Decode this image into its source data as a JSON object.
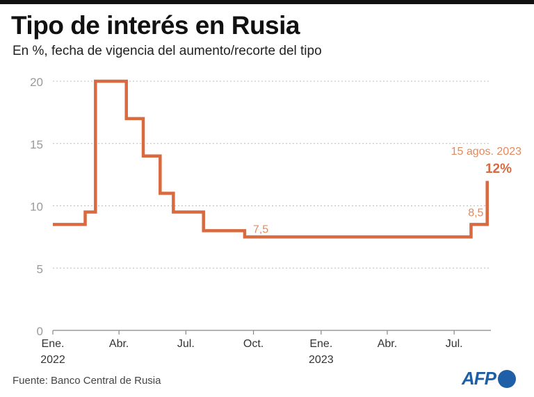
{
  "header": {
    "title": "Tipo de interés en Rusia",
    "subtitle": "En %, fecha de vigencia del aumento/recorte del tipo"
  },
  "source": "Fuente: Banco Central de Rusia",
  "logo": {
    "text": "AFP"
  },
  "colors": {
    "line": "#d9693f",
    "label": "#e08a5e",
    "grid": "#bbbbbb",
    "axis": "#888888",
    "logo": "#1f5fa8"
  },
  "chart_data": {
    "type": "line",
    "step": true,
    "title": "Tipo de interés en Rusia",
    "subtitle": "En %, fecha de vigencia del aumento/recorte del tipo",
    "ylim": [
      0,
      20
    ],
    "yticks": [
      0,
      5,
      10,
      15,
      20
    ],
    "xlim": [
      "2022-01-01",
      "2023-08-20"
    ],
    "xticks": [
      {
        "date": "2022-01-01",
        "label": "Ene.",
        "label2": "2022"
      },
      {
        "date": "2022-04-01",
        "label": "Abr.",
        "label2": ""
      },
      {
        "date": "2022-07-01",
        "label": "Jul.",
        "label2": ""
      },
      {
        "date": "2022-10-01",
        "label": "Oct.",
        "label2": ""
      },
      {
        "date": "2023-01-01",
        "label": "Ene.",
        "label2": "2023"
      },
      {
        "date": "2023-04-01",
        "label": "Abr.",
        "label2": ""
      },
      {
        "date": "2023-07-01",
        "label": "Jul.",
        "label2": ""
      }
    ],
    "grid": true,
    "series": [
      {
        "points": [
          {
            "x": "2022-01-01",
            "y": 8.5
          },
          {
            "x": "2022-02-14",
            "y": 9.5
          },
          {
            "x": "2022-02-28",
            "y": 20
          },
          {
            "x": "2022-04-11",
            "y": 17
          },
          {
            "x": "2022-05-04",
            "y": 14
          },
          {
            "x": "2022-05-27",
            "y": 11
          },
          {
            "x": "2022-06-14",
            "y": 9.5
          },
          {
            "x": "2022-07-25",
            "y": 8
          },
          {
            "x": "2022-09-19",
            "y": 7.5
          },
          {
            "x": "2023-07-24",
            "y": 8.5
          },
          {
            "x": "2023-08-15",
            "y": 12
          }
        ]
      }
    ],
    "annotations": [
      {
        "text": "7,5",
        "x": "2022-09-19",
        "y": 7.5
      },
      {
        "text": "8,5",
        "x": "2023-07-24",
        "y": 8.5
      },
      {
        "text": "15 agos. 2023",
        "x": "2023-08-15",
        "y": 12
      },
      {
        "text": "12%",
        "x": "2023-08-15",
        "y": 12,
        "bold": true
      }
    ]
  }
}
